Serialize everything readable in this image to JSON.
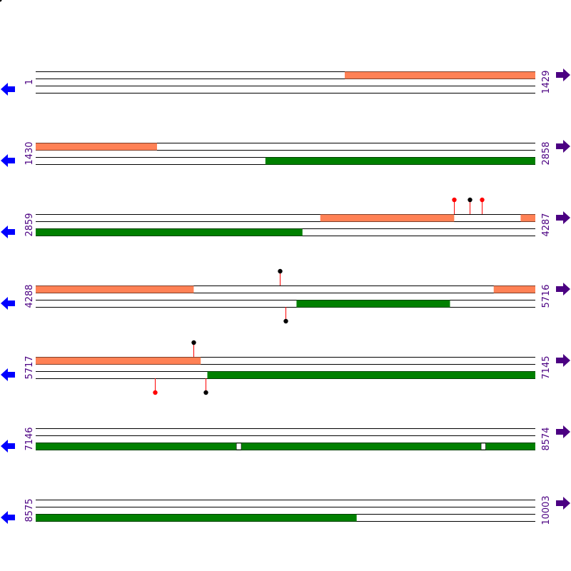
{
  "colors": {
    "forward_feature": "#ff8155",
    "reverse_feature": "#008000",
    "strand_line": "#000000",
    "left_arrow": "#0000ff",
    "right_arrow": "#4b0082",
    "label": "#4b0082",
    "marker_red": "#ff0000",
    "marker_black": "#000000",
    "stem": "#ff0000"
  },
  "icons": {
    "left": "arrow-left-icon",
    "right": "arrow-right-icon"
  },
  "rows": [
    {
      "start": 1,
      "end": 1429,
      "start_label": "1",
      "end_label": "1429",
      "forward_features": [
        [
          885,
          1429
        ]
      ],
      "reverse_features": [],
      "gaps_forward": [],
      "gaps_reverse": []
    },
    {
      "start": 1430,
      "end": 2858,
      "start_label": "1430",
      "end_label": "2858",
      "forward_features": [
        [
          1430,
          1776
        ]
      ],
      "reverse_features": [
        [
          2087,
          2858
        ]
      ],
      "gaps_forward": [],
      "gaps_reverse": []
    },
    {
      "start": 2859,
      "end": 4287,
      "start_label": "2859",
      "end_label": "4287",
      "forward_features": [
        [
          3673,
          4055
        ],
        [
          4246,
          4287
        ]
      ],
      "reverse_features": [
        [
          2859,
          3621
        ]
      ],
      "gaps_forward": [],
      "gaps_reverse": []
    },
    {
      "start": 4288,
      "end": 5716,
      "start_label": "4288",
      "end_label": "5716",
      "forward_features": [
        [
          4288,
          4739
        ],
        [
          5598,
          5716
        ]
      ],
      "reverse_features": [
        [
          5034,
          5472
        ]
      ],
      "gaps_forward": [],
      "gaps_reverse": []
    },
    {
      "start": 5717,
      "end": 7145,
      "start_label": "5717",
      "end_label": "7145",
      "forward_features": [
        [
          5717,
          6188
        ]
      ],
      "reverse_features": [
        [
          6208,
          7145
        ]
      ],
      "gaps_forward": [],
      "gaps_reverse": []
    },
    {
      "start": 7146,
      "end": 8574,
      "start_label": "7146",
      "end_label": "8574",
      "forward_features": [],
      "reverse_features": [
        [
          7146,
          8574
        ]
      ],
      "gaps_forward": [],
      "gaps_reverse": [
        [
          7720,
          7733
        ],
        [
          8420,
          8432
        ]
      ]
    },
    {
      "start": 8575,
      "end": 10003,
      "start_label": "8575",
      "end_label": "10003",
      "forward_features": [],
      "reverse_features": [
        [
          8575,
          9492
        ]
      ],
      "gaps_forward": [],
      "gaps_reverse": []
    }
  ],
  "markers": [
    {
      "row": 2,
      "strand": "forward",
      "position": 4055,
      "color": "red"
    },
    {
      "row": 2,
      "strand": "forward",
      "position": 4100,
      "color": "black"
    },
    {
      "row": 2,
      "strand": "forward",
      "position": 4135,
      "color": "red"
    },
    {
      "row": 3,
      "strand": "forward",
      "position": 4986,
      "color": "black"
    },
    {
      "row": 3,
      "strand": "reverse",
      "position": 5003,
      "color": "black"
    },
    {
      "row": 4,
      "strand": "forward",
      "position": 6168,
      "color": "black"
    },
    {
      "row": 4,
      "strand": "reverse",
      "position": 6058,
      "color": "red"
    },
    {
      "row": 4,
      "strand": "reverse",
      "position": 6203,
      "color": "black"
    }
  ]
}
